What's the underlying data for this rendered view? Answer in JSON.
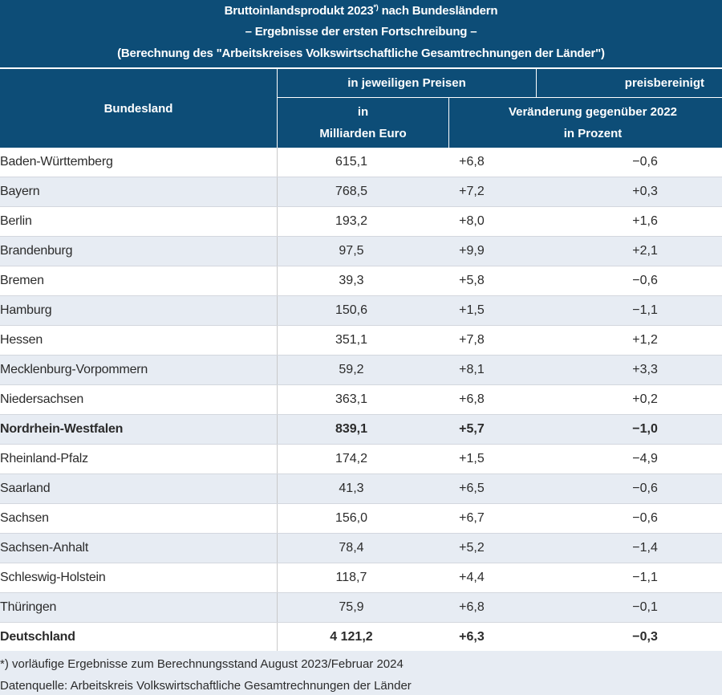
{
  "title": {
    "line1_main": "Bruttoinlandsprodukt 2023",
    "line1_sup": "*)",
    "line1_rest": " nach Bundesländern",
    "line2": "– Ergebnisse der ersten Fortschreibung –",
    "line3": "(Berechnung des \"Arbeitskreises Volkswirtschaftliche Gesamtrechnungen der Länder\")"
  },
  "header": {
    "bundesland": "Bundesland",
    "jeweiligen": "in jeweiligen Preisen",
    "preisbereinigt": "preisbereinigt",
    "mrd_line1": "in",
    "mrd_line2": "Milliarden Euro",
    "veraenderung_line1": "Veränderung gegenüber 2022",
    "veraenderung_line2": "in Prozent"
  },
  "rows": [
    {
      "name": "Baden-Württemberg",
      "mrd": "615,1",
      "nominal": "+6,8",
      "real": "−0,6"
    },
    {
      "name": "Bayern",
      "mrd": "768,5",
      "nominal": "+7,2",
      "real": "+0,3"
    },
    {
      "name": "Berlin",
      "mrd": "193,2",
      "nominal": "+8,0",
      "real": "+1,6"
    },
    {
      "name": "Brandenburg",
      "mrd": "97,5",
      "nominal": "+9,9",
      "real": "+2,1"
    },
    {
      "name": "Bremen",
      "mrd": "39,3",
      "nominal": "+5,8",
      "real": "−0,6"
    },
    {
      "name": "Hamburg",
      "mrd": "150,6",
      "nominal": "+1,5",
      "real": "−1,1"
    },
    {
      "name": "Hessen",
      "mrd": "351,1",
      "nominal": "+7,8",
      "real": "+1,2"
    },
    {
      "name": "Mecklenburg-Vorpommern",
      "mrd": "59,2",
      "nominal": "+8,1",
      "real": "+3,3"
    },
    {
      "name": "Niedersachsen",
      "mrd": "363,1",
      "nominal": "+6,8",
      "real": "+0,2"
    },
    {
      "name": "Nordrhein-Westfalen",
      "mrd": "839,1",
      "nominal": "+5,7",
      "real": "−1,0",
      "bold": true
    },
    {
      "name": "Rheinland-Pfalz",
      "mrd": "174,2",
      "nominal": "+1,5",
      "real": "−4,9"
    },
    {
      "name": "Saarland",
      "mrd": "41,3",
      "nominal": "+6,5",
      "real": "−0,6"
    },
    {
      "name": "Sachsen",
      "mrd": "156,0",
      "nominal": "+6,7",
      "real": "−0,6"
    },
    {
      "name": "Sachsen-Anhalt",
      "mrd": "78,4",
      "nominal": "+5,2",
      "real": "−1,4"
    },
    {
      "name": "Schleswig-Holstein",
      "mrd": "118,7",
      "nominal": "+4,4",
      "real": "−1,1"
    },
    {
      "name": "Thüringen",
      "mrd": "75,9",
      "nominal": "+6,8",
      "real": "−0,1"
    },
    {
      "name": "Deutschland",
      "mrd": "4 121,2",
      "nominal": "+6,3",
      "real": "−0,3",
      "bold": true
    }
  ],
  "footnote": {
    "note": "*) vorläufige Ergebnisse zum Berechnungsstand August 2023/Februar 2024",
    "source": "Datenquelle: Arbeitskreis Volkswirtschaftliche Gesamtrechnungen der Länder"
  },
  "colors": {
    "header_bg": "#0d4d77",
    "stripe": "#e7ecf3"
  }
}
